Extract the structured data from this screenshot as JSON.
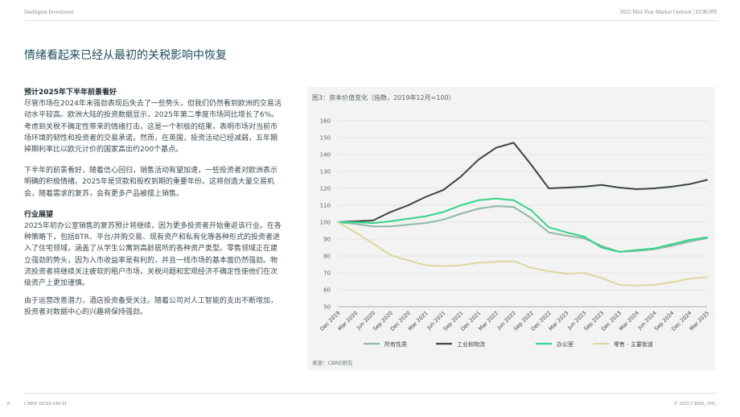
{
  "header": {
    "left": "Intelligent Investment",
    "right": "2025 Mid-Year Market Outlook | EUROPE"
  },
  "page_title": "情绪看起来已经从最初的关税影响中恢复",
  "left_column": {
    "h1": "预计2025年下半年前景看好",
    "p1": "尽管市场在2024年末强劲表现后失去了一些势头，但我们仍然看到欧洲的交易活动水平较高。欧洲大陆的投资数据显示，2025年第二季度市场同比增长了6%。考虑到关税不确定性带来的情绪打击，这是一个积极的结果，表明市场对当前市场环境的韧性和投资者的交易承诺。然而，在英国，投资活动已经减弱，五年期掉期利率比以欧元计价的国家高出约200个基点。",
    "p2": "下半年的前景看好，随着信心回归，销售活动有望加速，一些投资者对欧洲表示明确的积极情绪。2025年是贷款和股权到期的重要年份。这将创造大量交易机会，随着需求的复苏，会有更多产品被摆上销售。",
    "h2": "行业展望",
    "p3": "2025年初办公室销售的复苏预计将继续，因为更多投资者开始重返该行业。在各种策略下，包括BTR、平台/并购交易、现有资产和私有化等各种形式的投资者进入了住宅领域，涵盖了从学生公寓到高龄居所的各种资产类型。零售领域正在建立强劲的势头，因为入市收益率是有利的，并且一线市场的基本面仍然强劲。物流投资者将继续关注疲软的租户市场，关税问题和宏观经济不确定性使他们在次级资产上更加谨慎。",
    "p4": "由于运营改善潜力，酒店投资备受关注。随着公司对人工智能的支出不断增加，投资者对数据中心的兴趣将保持强劲。"
  },
  "chart_caption": "图3：资本价值变化（指数，2019年12月=100）",
  "chart_source": "来源：CBRE研究",
  "chart_data": {
    "type": "line",
    "title": "",
    "xlabel": "",
    "ylabel": "",
    "ylim": [
      50,
      160
    ],
    "yticks": [
      50,
      60,
      70,
      80,
      90,
      100,
      110,
      120,
      130,
      140,
      150,
      160
    ],
    "categories": [
      "Dec 2019",
      "Mar 2020",
      "Jun 2020",
      "Sep 2020",
      "Dec 2020",
      "Mar 2021",
      "Jun 2021",
      "Sep 2021",
      "Dec 2021",
      "Mar 2022",
      "Jun 2022",
      "Sep 2022",
      "Dec 2022",
      "Mar 2023",
      "Jun 2023",
      "Sep 2023",
      "Dec 2023",
      "Mar 2024",
      "Jun 2024",
      "Sep 2024",
      "Dec 2024",
      "Mar 2025"
    ],
    "x_tick_labels": [
      "Dec 2019",
      "Mar 2020",
      "Jun 2020",
      "Sep 2020",
      "Dec 2020",
      "Mar 2021",
      "Jun 2021",
      "Sep 2021",
      "Dec 2021",
      "Mar 2022",
      "Jun 2022",
      "Sep 2022",
      "Dec 2022",
      "Mar 2023",
      "Jun 2023",
      "Sep 2023",
      "Dec 2023",
      "Mar 2024",
      "Jun 2024",
      "Sep 2024",
      "Dec 2024",
      "Mar 2025"
    ],
    "grid": true,
    "legend_position": "bottom",
    "series": [
      {
        "name": "所有性质",
        "color": "#8fb8a8",
        "values": [
          100,
          99,
          97.5,
          97.5,
          98.5,
          99.5,
          101.5,
          105,
          108,
          109.5,
          109,
          102.5,
          94,
          92,
          90.5,
          86,
          82.5,
          83,
          84,
          86,
          88.5,
          90.5
        ]
      },
      {
        "name": "工业和物流",
        "color": "#3c4446",
        "values": [
          100,
          100.5,
          101,
          106,
          110,
          115,
          119,
          127,
          137,
          144,
          147,
          134,
          120,
          120.5,
          121,
          122,
          120.5,
          119.5,
          120,
          121,
          122.5,
          125
        ]
      },
      {
        "name": "办公室",
        "color": "#35d38a",
        "values": [
          100,
          100,
          99.5,
          100.5,
          102,
          103.5,
          106,
          110,
          113,
          114,
          113,
          107,
          97,
          94,
          91.5,
          85,
          82.5,
          83.5,
          84.5,
          87,
          89.5,
          91
        ]
      },
      {
        "name": "零售 - 主要街道",
        "color": "#ddd6a0",
        "values": [
          100,
          94,
          87.5,
          80.5,
          77.5,
          74.5,
          74,
          74.5,
          76,
          76.5,
          77,
          73,
          71,
          69.5,
          70,
          67,
          63,
          62.5,
          63,
          64.5,
          66.5,
          67.5
        ]
      }
    ]
  }
}
